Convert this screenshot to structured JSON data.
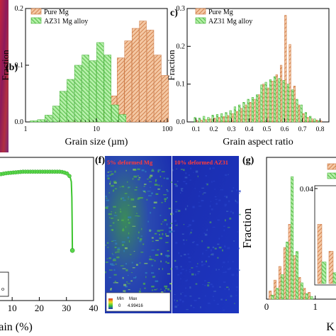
{
  "panels": {
    "b": "(b)",
    "c": "c)",
    "f": "(f)",
    "g": "(g)"
  },
  "colors": {
    "pure_mg": "#d9905a",
    "az31": "#5fcf4a",
    "ebsd_blue": "#1c2fb5",
    "micro_red": "#b0203a"
  },
  "legend": {
    "pure_mg": "Pure Mg",
    "az31": "AZ31 Mg alloy",
    "g_small": "K"
  },
  "chart_data": [
    {
      "id": "b",
      "type": "bar",
      "title": "",
      "xlabel": "Grain size (µm)",
      "ylabel": "Fraction",
      "xscale": "log",
      "xlim": [
        1,
        100
      ],
      "ylim": [
        0,
        0.2
      ],
      "xticks": [
        "1",
        "10",
        "100"
      ],
      "yticks": [
        "0.0",
        "0.1",
        "0.2"
      ],
      "legend_position": "top-right",
      "series": [
        {
          "name": "Pure Mg",
          "x": [
            3.2,
            4.1,
            5.2,
            6.6,
            8.4,
            10.7,
            13.6,
            17.3,
            22,
            28,
            35.6,
            45.3,
            57.6,
            73.3,
            93.2
          ],
          "values": [
            0.002,
            0.002,
            0.003,
            0.004,
            0.006,
            0.012,
            0.02,
            0.046,
            0.113,
            0.143,
            0.165,
            0.178,
            0.162,
            0.118,
            0.082
          ]
        },
        {
          "name": "AZ31 Mg alloy",
          "x": [
            1.3,
            1.65,
            2.1,
            2.7,
            3.4,
            4.3,
            5.5,
            7.0,
            8.9,
            11.3,
            14.4,
            18.3,
            23.3
          ],
          "values": [
            0.002,
            0.004,
            0.012,
            0.028,
            0.054,
            0.075,
            0.1,
            0.118,
            0.108,
            0.14,
            0.118,
            0.03,
            0.013
          ]
        }
      ]
    },
    {
      "id": "c",
      "type": "bar",
      "title": "",
      "xlabel": "Grain aspect ratio",
      "ylabel": "Fraction",
      "xlim": [
        0.05,
        0.85
      ],
      "ylim": [
        0,
        0.3
      ],
      "xticks": [
        "0.1",
        "0.2",
        "0.3",
        "0.4",
        "0.5",
        "0.6",
        "0.7",
        "0.8"
      ],
      "yticks": [
        "0.0",
        "0.1",
        "0.2",
        "0.3"
      ],
      "legend_position": "top-right",
      "series": [
        {
          "name": "Pure Mg",
          "x": [
            0.1,
            0.125,
            0.15,
            0.175,
            0.2,
            0.225,
            0.25,
            0.275,
            0.3,
            0.325,
            0.35,
            0.375,
            0.4,
            0.425,
            0.45,
            0.475,
            0.5,
            0.525,
            0.55,
            0.575,
            0.6,
            0.625,
            0.65,
            0.675,
            0.7,
            0.725,
            0.75,
            0.775,
            0.8
          ],
          "values": [
            0.004,
            0.005,
            0.006,
            0.008,
            0.01,
            0.012,
            0.014,
            0.017,
            0.022,
            0.028,
            0.036,
            0.045,
            0.052,
            0.06,
            0.072,
            0.1,
            0.09,
            0.108,
            0.125,
            0.15,
            0.282,
            0.205,
            0.095,
            0.045,
            0.022,
            0.012,
            0.008,
            0.005,
            0.003
          ]
        },
        {
          "name": "AZ31 Mg alloy",
          "x": [
            0.1,
            0.125,
            0.15,
            0.175,
            0.2,
            0.225,
            0.25,
            0.275,
            0.3,
            0.325,
            0.35,
            0.375,
            0.4,
            0.425,
            0.45,
            0.475,
            0.5,
            0.525,
            0.55,
            0.575,
            0.6,
            0.625,
            0.65,
            0.675,
            0.7,
            0.725,
            0.75,
            0.775,
            0.8
          ],
          "values": [
            0.012,
            0.01,
            0.015,
            0.012,
            0.018,
            0.02,
            0.022,
            0.025,
            0.03,
            0.04,
            0.045,
            0.052,
            0.06,
            0.065,
            0.072,
            0.098,
            0.105,
            0.112,
            0.12,
            0.115,
            0.11,
            0.1,
            0.085,
            0.06,
            0.045,
            0.025,
            0.015,
            0.008,
            0.004
          ]
        }
      ]
    },
    {
      "id": "e",
      "type": "line",
      "title": "",
      "xlabel": "ain (%)",
      "ylabel": "",
      "xlim": [
        5,
        40
      ],
      "xticks": [
        "10",
        "20",
        "30",
        "40"
      ],
      "series": [
        {
          "name": "",
          "x": [
            5,
            8,
            11,
            14,
            17,
            20,
            23,
            26,
            28,
            29,
            30,
            30.8,
            31.4,
            31.8,
            32,
            32.1,
            32.2
          ],
          "y": [
            0.88,
            0.89,
            0.895,
            0.9,
            0.9,
            0.9,
            0.9,
            0.9,
            0.9,
            0.895,
            0.89,
            0.88,
            0.86,
            0.83,
            0.72,
            0.55,
            0.35
          ]
        }
      ]
    },
    {
      "id": "g",
      "type": "bar",
      "title": "",
      "xlabel": "K",
      "ylabel": "Fraction",
      "xlim": [
        0,
        1.6
      ],
      "xticks": [
        "0",
        "1"
      ],
      "yticks": [],
      "series": [
        {
          "name": "",
          "x": [
            0.1,
            0.2,
            0.3,
            0.4,
            0.5,
            0.6,
            0.7,
            0.8,
            0.9,
            1.0,
            1.1
          ],
          "values": [
            0.06,
            0.14,
            0.24,
            0.38,
            0.55,
            0.32,
            0.16,
            0.08,
            0.05,
            0.03,
            0.02
          ]
        },
        {
          "name": "",
          "x": [
            0.1,
            0.2,
            0.3,
            0.4,
            0.5,
            0.6,
            0.7,
            0.8,
            0.9,
            1.0,
            1.1
          ],
          "values": [
            0.03,
            0.08,
            0.18,
            0.42,
            0.9,
            0.35,
            0.12,
            0.04,
            0.02,
            0.01,
            0.005
          ]
        }
      ],
      "inset": {
        "ytick": "0.04",
        "series": [
          {
            "values": [
              0.022,
              0.012
            ]
          },
          {
            "values": [
              0.008,
              0.004
            ]
          }
        ]
      }
    }
  ],
  "maps": {
    "f_left_label": "5% deformed Mg",
    "f_right_label": "10% deformed AZ31",
    "scale_min_label": "Min",
    "scale_max_label": "Max",
    "scale_min_value": "0",
    "scale_max_value": "4.99416"
  },
  "e_extra": {
    "legend_fragment": "o"
  }
}
